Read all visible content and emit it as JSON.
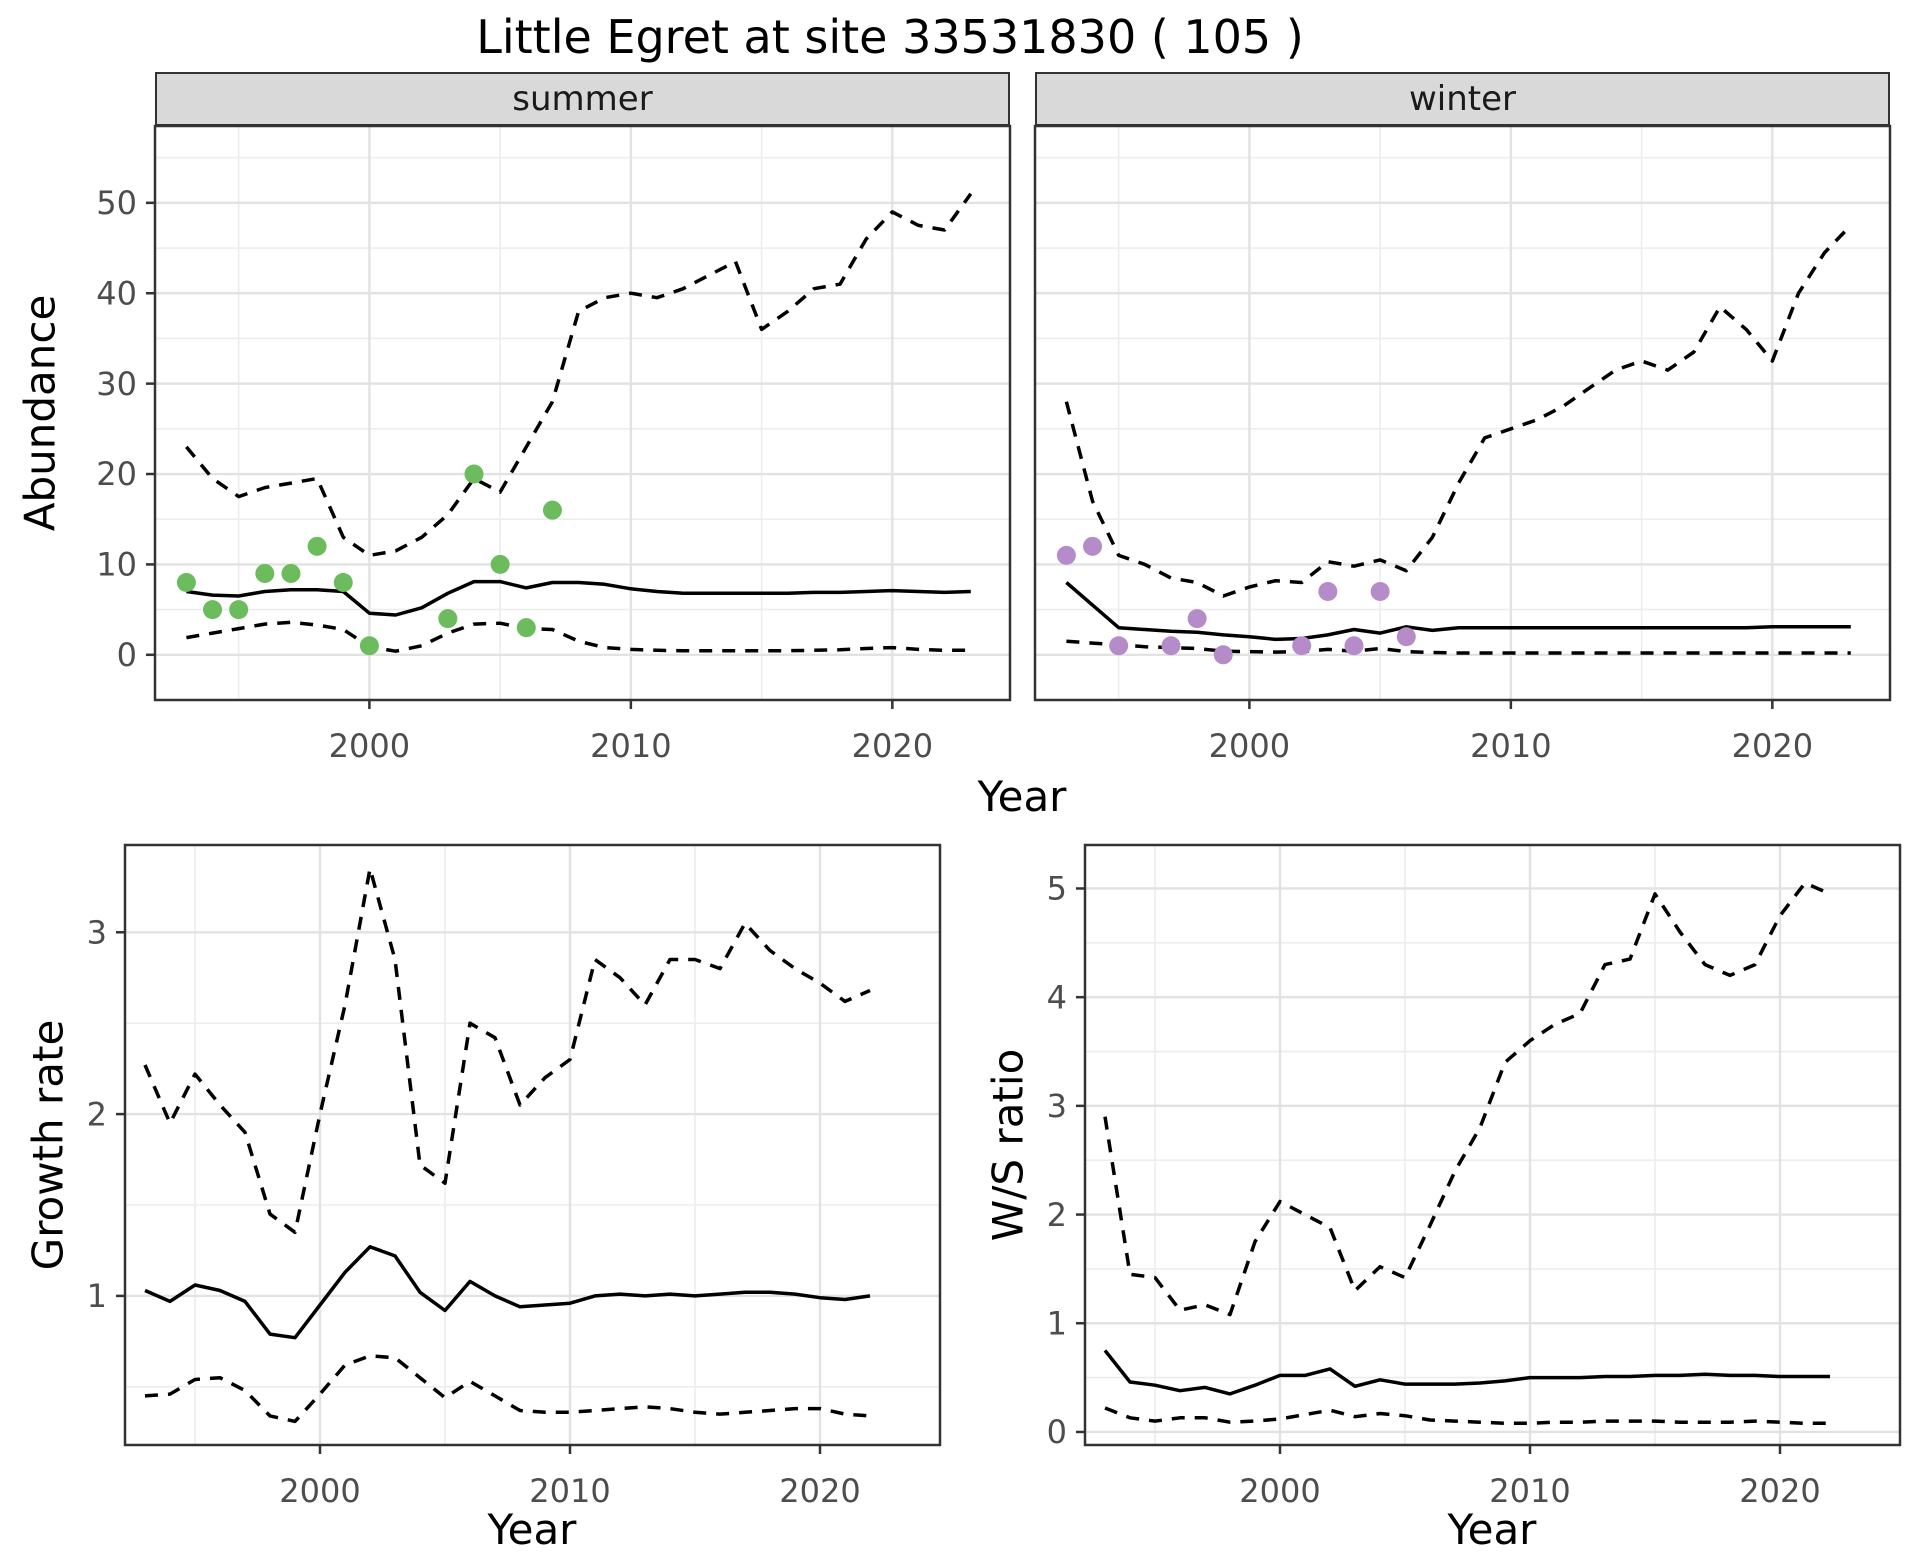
{
  "title": "Little Egret at site 33531830 ( 105 )",
  "facets": {
    "summer": "summer",
    "winter": "winter"
  },
  "axis_labels": {
    "abundance": "Abundance",
    "growth_rate": "Growth rate",
    "ws_ratio": "W/S ratio",
    "year": "Year"
  },
  "colors": {
    "strip_bg": "#d9d9d9",
    "line": "#000000",
    "observed_summer": "#6cbb5c",
    "observed_winter": "#b58cc9",
    "panel_border": "#333333",
    "grid_major": "#e2e2e2",
    "grid_minor": "#ededed",
    "tick_text": "#4d4d4d"
  },
  "chart_data": [
    {
      "id": "abundance_summer",
      "type": "line",
      "facet": "summer",
      "xlabel": "Year",
      "ylabel": "Abundance",
      "xlim": [
        1991.8,
        2024.5
      ],
      "ylim": [
        -5,
        58.5
      ],
      "x_ticks": [
        2000,
        2010,
        2020
      ],
      "y_ticks": [
        0,
        10,
        20,
        30,
        40,
        50
      ],
      "show_y_labels": true,
      "x": [
        1993,
        1994,
        1995,
        1996,
        1997,
        1998,
        1999,
        2000,
        2001,
        2002,
        2003,
        2004,
        2005,
        2006,
        2007,
        2008,
        2009,
        2010,
        2011,
        2012,
        2013,
        2014,
        2015,
        2016,
        2017,
        2018,
        2019,
        2020,
        2021,
        2022,
        2023
      ],
      "series": [
        {
          "name": "upper_ci",
          "style": "dashed",
          "values": [
            23,
            19.5,
            17.5,
            18.5,
            19,
            19.5,
            13,
            11,
            11.5,
            13,
            15.5,
            19.5,
            18,
            23,
            28,
            38,
            39.5,
            40,
            39.5,
            40.5,
            42,
            43.5,
            36,
            38,
            40.5,
            41,
            46,
            49,
            47.5,
            47,
            51
          ]
        },
        {
          "name": "lower_ci",
          "style": "dashed",
          "values": [
            1.9,
            2.4,
            2.9,
            3.4,
            3.6,
            3.3,
            2.8,
            0.9,
            0.4,
            1.0,
            2.4,
            3.4,
            3.5,
            2.9,
            2.8,
            1.5,
            0.8,
            0.6,
            0.5,
            0.45,
            0.45,
            0.45,
            0.45,
            0.45,
            0.5,
            0.55,
            0.7,
            0.8,
            0.6,
            0.5,
            0.5
          ]
        },
        {
          "name": "fit",
          "style": "solid",
          "values": [
            7,
            6.6,
            6.5,
            7,
            7.2,
            7.2,
            7,
            4.6,
            4.4,
            5.2,
            6.8,
            8.1,
            8.1,
            7.4,
            8,
            8,
            7.8,
            7.3,
            7,
            6.8,
            6.8,
            6.8,
            6.8,
            6.8,
            6.9,
            6.9,
            7,
            7.1,
            7,
            6.9,
            7
          ]
        },
        {
          "name": "observed",
          "style": "points",
          "color": "#6cbb5c",
          "x": [
            1993,
            1994,
            1995,
            1996,
            1997,
            1998,
            1999,
            2000,
            2003,
            2004,
            2005,
            2006,
            2007
          ],
          "values": [
            8,
            5,
            5,
            9,
            9,
            12,
            8,
            1,
            4,
            20,
            10,
            3,
            16
          ]
        }
      ]
    },
    {
      "id": "abundance_winter",
      "type": "line",
      "facet": "winter",
      "xlabel": "Year",
      "ylabel": "Abundance",
      "xlim": [
        1991.8,
        2024.5
      ],
      "ylim": [
        -5,
        58.5
      ],
      "x_ticks": [
        2000,
        2010,
        2020
      ],
      "y_ticks": [
        0,
        10,
        20,
        30,
        40,
        50
      ],
      "show_y_labels": false,
      "x": [
        1993,
        1994,
        1995,
        1996,
        1997,
        1998,
        1999,
        2000,
        2001,
        2002,
        2003,
        2004,
        2005,
        2006,
        2007,
        2008,
        2009,
        2010,
        2011,
        2012,
        2013,
        2014,
        2015,
        2016,
        2017,
        2018,
        2019,
        2020,
        2021,
        2022,
        2023
      ],
      "series": [
        {
          "name": "upper_ci",
          "style": "dashed",
          "values": [
            28,
            17,
            11,
            10,
            8.5,
            8,
            6.5,
            7.5,
            8.2,
            8,
            10.3,
            9.8,
            10.5,
            9.3,
            13,
            19,
            24,
            25,
            26,
            27.5,
            29.5,
            31.5,
            32.5,
            31.5,
            33.5,
            38.5,
            36,
            32.5,
            40,
            44.5,
            47.5
          ]
        },
        {
          "name": "lower_ci",
          "style": "dashed",
          "values": [
            1.5,
            1.3,
            1.1,
            0.9,
            0.8,
            0.7,
            0.4,
            0.35,
            0.3,
            0.35,
            0.6,
            0.4,
            0.7,
            0.35,
            0.25,
            0.2,
            0.2,
            0.2,
            0.2,
            0.2,
            0.2,
            0.2,
            0.2,
            0.2,
            0.2,
            0.2,
            0.2,
            0.2,
            0.2,
            0.2,
            0.2
          ]
        },
        {
          "name": "fit",
          "style": "solid",
          "values": [
            8,
            5.5,
            3,
            2.8,
            2.6,
            2.5,
            2.2,
            2,
            1.7,
            1.8,
            2.2,
            2.8,
            2.4,
            3.1,
            2.7,
            3,
            3,
            3,
            3,
            3,
            3,
            3,
            3,
            3,
            3,
            3,
            3,
            3.1,
            3.1,
            3.1,
            3.1
          ]
        },
        {
          "name": "observed",
          "style": "points",
          "color": "#b58cc9",
          "x": [
            1993,
            1994,
            1995,
            1997,
            1998,
            1999,
            2002,
            2003,
            2004,
            2005,
            2006
          ],
          "values": [
            11,
            12,
            1,
            1,
            4,
            0,
            1,
            7,
            1,
            7,
            2
          ]
        }
      ]
    },
    {
      "id": "growth_rate",
      "type": "line",
      "xlabel": "Year",
      "ylabel": "Growth rate",
      "xlim": [
        1992.2,
        2024.8
      ],
      "ylim": [
        0.18,
        3.48
      ],
      "x_ticks": [
        2000,
        2010,
        2020
      ],
      "y_ticks": [
        1,
        2,
        3
      ],
      "show_y_labels": true,
      "x": [
        1993,
        1994,
        1995,
        1996,
        1997,
        1998,
        1999,
        2000,
        2001,
        2002,
        2003,
        2004,
        2005,
        2006,
        2007,
        2008,
        2009,
        2010,
        2011,
        2012,
        2013,
        2014,
        2015,
        2016,
        2017,
        2018,
        2019,
        2020,
        2021,
        2022
      ],
      "series": [
        {
          "name": "upper_ci",
          "style": "dashed",
          "values": [
            2.27,
            1.95,
            2.22,
            2.05,
            1.9,
            1.45,
            1.35,
            2,
            2.6,
            3.35,
            2.85,
            1.72,
            1.62,
            2.5,
            2.42,
            2.05,
            2.2,
            2.3,
            2.85,
            2.75,
            2.6,
            2.85,
            2.85,
            2.8,
            3.05,
            2.9,
            2.8,
            2.72,
            2.62,
            2.68
          ]
        },
        {
          "name": "lower_ci",
          "style": "dashed",
          "values": [
            0.45,
            0.46,
            0.54,
            0.55,
            0.48,
            0.34,
            0.31,
            0.46,
            0.62,
            0.67,
            0.66,
            0.55,
            0.44,
            0.53,
            0.45,
            0.37,
            0.36,
            0.36,
            0.37,
            0.38,
            0.39,
            0.38,
            0.36,
            0.35,
            0.36,
            0.37,
            0.38,
            0.38,
            0.35,
            0.34
          ]
        },
        {
          "name": "fit",
          "style": "solid",
          "values": [
            1.03,
            0.97,
            1.06,
            1.03,
            0.97,
            0.79,
            0.77,
            0.95,
            1.13,
            1.27,
            1.22,
            1.02,
            0.92,
            1.08,
            1.0,
            0.94,
            0.95,
            0.96,
            1.0,
            1.01,
            1.0,
            1.01,
            1.0,
            1.01,
            1.02,
            1.02,
            1.01,
            0.99,
            0.98,
            1.0
          ]
        }
      ]
    },
    {
      "id": "ws_ratio",
      "type": "line",
      "xlabel": "Year",
      "ylabel": "W/S ratio",
      "xlim": [
        1992.2,
        2024.8
      ],
      "ylim": [
        -0.12,
        5.4
      ],
      "x_ticks": [
        2000,
        2010,
        2020
      ],
      "y_ticks": [
        0,
        1,
        2,
        3,
        4,
        5
      ],
      "show_y_labels": true,
      "x": [
        1993,
        1994,
        1995,
        1996,
        1997,
        1998,
        1999,
        2000,
        2001,
        2002,
        2003,
        2004,
        2005,
        2006,
        2007,
        2008,
        2009,
        2010,
        2011,
        2012,
        2013,
        2014,
        2015,
        2016,
        2017,
        2018,
        2019,
        2020,
        2021,
        2022
      ],
      "series": [
        {
          "name": "upper_ci",
          "style": "dashed",
          "values": [
            2.9,
            1.45,
            1.42,
            1.12,
            1.17,
            1.08,
            1.75,
            2.12,
            2.0,
            1.88,
            1.3,
            1.52,
            1.42,
            1.9,
            2.4,
            2.8,
            3.4,
            3.6,
            3.75,
            3.85,
            4.3,
            4.35,
            4.95,
            4.6,
            4.3,
            4.2,
            4.3,
            4.75,
            5.05,
            4.95
          ]
        },
        {
          "name": "lower_ci",
          "style": "dashed",
          "values": [
            0.22,
            0.13,
            0.1,
            0.13,
            0.13,
            0.09,
            0.1,
            0.12,
            0.16,
            0.2,
            0.14,
            0.17,
            0.15,
            0.11,
            0.1,
            0.09,
            0.08,
            0.08,
            0.09,
            0.09,
            0.1,
            0.1,
            0.1,
            0.09,
            0.09,
            0.09,
            0.1,
            0.09,
            0.08,
            0.08
          ]
        },
        {
          "name": "fit",
          "style": "solid",
          "values": [
            0.75,
            0.46,
            0.43,
            0.38,
            0.41,
            0.35,
            0.43,
            0.52,
            0.52,
            0.58,
            0.42,
            0.48,
            0.44,
            0.44,
            0.44,
            0.45,
            0.47,
            0.5,
            0.5,
            0.5,
            0.51,
            0.51,
            0.52,
            0.52,
            0.53,
            0.52,
            0.52,
            0.51,
            0.51,
            0.51
          ]
        }
      ]
    }
  ]
}
